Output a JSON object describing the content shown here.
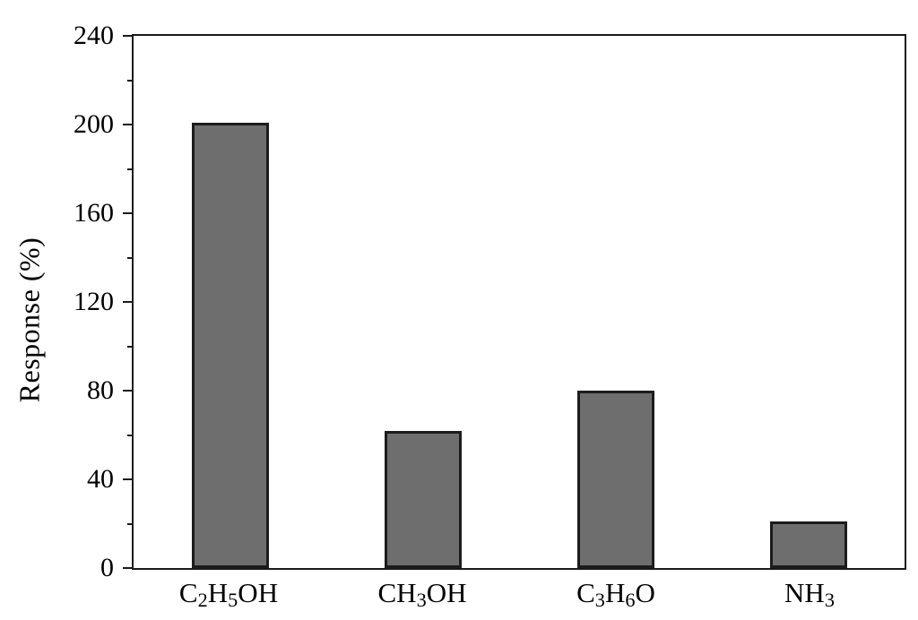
{
  "chart_data": {
    "type": "bar",
    "title": "",
    "xlabel": "",
    "ylabel": "Response (%)",
    "categories": [
      "C₂H₅OH",
      "CH₃OH",
      "C₃H₆O",
      "NH₃"
    ],
    "values": [
      201,
      62,
      80,
      21
    ],
    "ylim": [
      0,
      240
    ],
    "yticks": [
      0,
      40,
      80,
      120,
      160,
      200,
      240
    ],
    "ytick_minor_step": 20,
    "grid": false,
    "legend": "none",
    "tick_direction": "out",
    "frame": "full-box",
    "bar_width_fraction": 0.4,
    "colors": {
      "bar_fill": "#6e6e6e",
      "bar_border": "#1c1c1c",
      "axis": "#1a1a1a",
      "text": "#000000",
      "background": "#ffffff"
    }
  }
}
